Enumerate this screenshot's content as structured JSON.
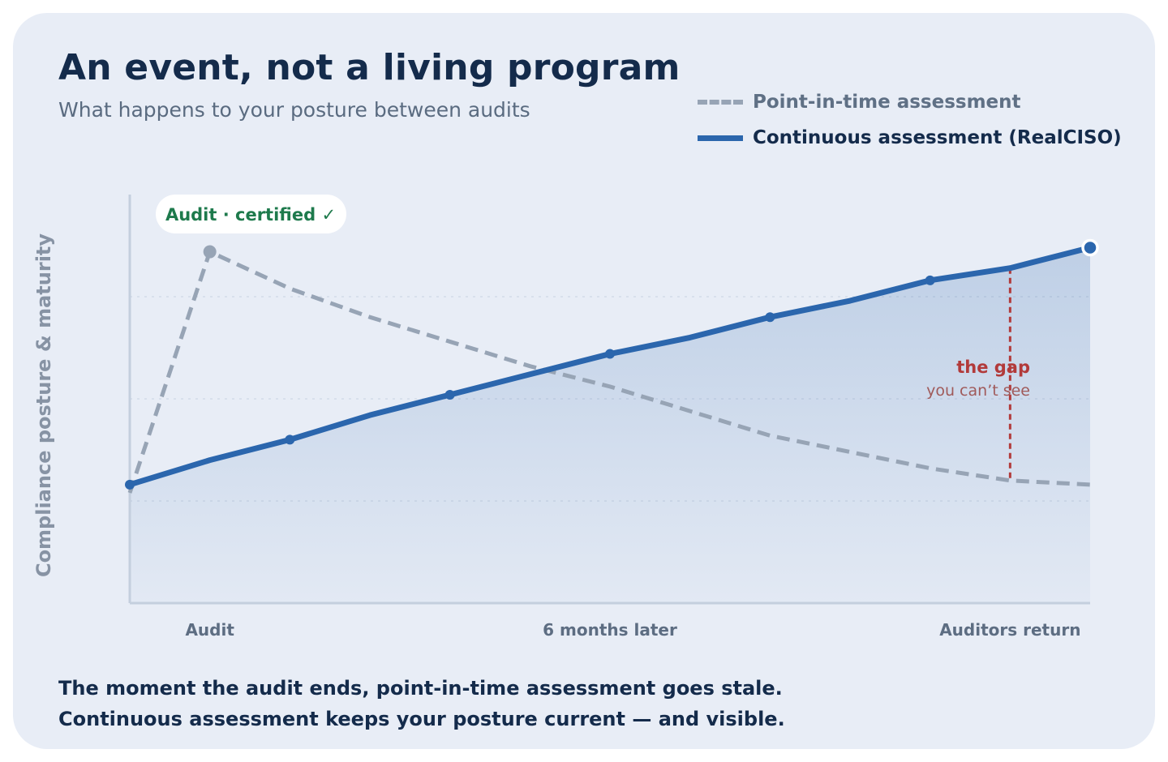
{
  "title": "An event, not a living program",
  "subtitle": "What happens to your posture between audits",
  "legend": {
    "point_in_time": "Point-in-time assessment",
    "continuous": "Continuous assessment (RealCISO)"
  },
  "footer": {
    "line1": "The moment the audit ends, point-in-time assessment goes stale.",
    "line2": "Continuous assessment keeps your posture current — and visible."
  },
  "colors": {
    "continuous": "#2b66ad",
    "point_in_time": "#97a4b5",
    "certified": "#1e7a4c",
    "gap": "#b23a3a",
    "card_bg": "#e8edf6"
  },
  "chart_data": {
    "type": "line",
    "xlabel": "",
    "ylabel": "Compliance posture & maturity",
    "ylim": [
      0,
      100
    ],
    "x": [
      0,
      1,
      2,
      3,
      4,
      5,
      6,
      7,
      8,
      9,
      10,
      11,
      12
    ],
    "tick_labels": [
      {
        "x": 1,
        "label": "Audit"
      },
      {
        "x": 6,
        "label": "6 months later"
      },
      {
        "x": 11,
        "label": "Auditors return"
      }
    ],
    "grid": "horizontal dotted",
    "legend_position": "top-right",
    "series": [
      {
        "name": "Point-in-time assessment",
        "style": "dashed",
        "values": [
          27,
          86,
          77,
          70,
          64,
          58,
          53,
          47,
          41,
          37,
          33,
          30,
          29
        ]
      },
      {
        "name": "Continuous assessment (RealCISO)",
        "style": "solid",
        "values": [
          29,
          35,
          40,
          46,
          51,
          56,
          61,
          65,
          70,
          74,
          79,
          82,
          87
        ]
      }
    ],
    "annotations": {
      "certified": "Audit · certified ✓",
      "gap_title": "the gap",
      "gap_subtitle": "you can’t see"
    }
  }
}
